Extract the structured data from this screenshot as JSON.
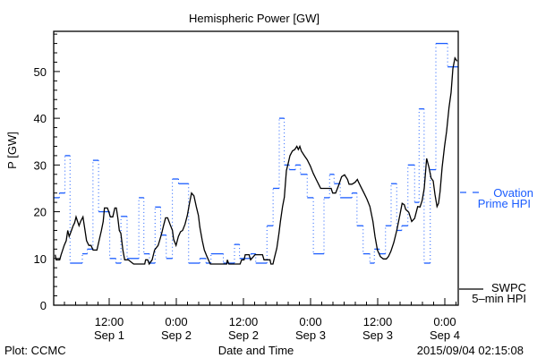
{
  "chart_data": {
    "type": "line",
    "title": "Hemispheric Power [GW]",
    "xlabel": "Date and Time",
    "ylabel": "P [GW]",
    "x_units": "hours since 2015-09-01 00:00 UT",
    "xlim": [
      2.08,
      74.4
    ],
    "ylim": [
      0,
      58.6
    ],
    "y_ticks": [
      0,
      10,
      20,
      30,
      40,
      50
    ],
    "y_tick_labels": [
      "0",
      "10",
      "20",
      "30",
      "40",
      "50"
    ],
    "x_ticks": [
      12,
      24,
      36,
      48,
      60,
      72
    ],
    "x_tick_labels": [
      {
        "time": "12:00",
        "date": "Sep 1"
      },
      {
        "time": "0:00",
        "date": "Sep 2"
      },
      {
        "time": "12:00",
        "date": "Sep 2"
      },
      {
        "time": "0:00",
        "date": "Sep 3"
      },
      {
        "time": "12:00",
        "date": "Sep 3"
      },
      {
        "time": "0:00",
        "date": "Sep 4"
      }
    ],
    "grid": false,
    "legend_placement": "right-outside",
    "series": [
      {
        "name": "Ovation Prime HPI",
        "legend_line1": "Ovation",
        "legend_line2": "Prime HPI",
        "color": "#1a5cff",
        "style": "step",
        "end_x": 74.4,
        "steps": [
          [
            2.1,
            23
          ],
          [
            3.1,
            24
          ],
          [
            4.1,
            32
          ],
          [
            5,
            9
          ],
          [
            7.2,
            11
          ],
          [
            8.1,
            12
          ],
          [
            9.1,
            31
          ],
          [
            10.1,
            20
          ],
          [
            12.1,
            10
          ],
          [
            13.2,
            9
          ],
          [
            14.1,
            19
          ],
          [
            15.2,
            10
          ],
          [
            17.3,
            23
          ],
          [
            18.2,
            11
          ],
          [
            19.2,
            9
          ],
          [
            20.2,
            21
          ],
          [
            21.2,
            15
          ],
          [
            22.2,
            10
          ],
          [
            23.3,
            27
          ],
          [
            24.4,
            26
          ],
          [
            26.2,
            9
          ],
          [
            28.2,
            10
          ],
          [
            29.3,
            9
          ],
          [
            30.2,
            11
          ],
          [
            32.4,
            9
          ],
          [
            34.4,
            13
          ],
          [
            35.3,
            10
          ],
          [
            37.3,
            11
          ],
          [
            38.2,
            9
          ],
          [
            40.2,
            17
          ],
          [
            41.3,
            25
          ],
          [
            42.4,
            40
          ],
          [
            43.3,
            30
          ],
          [
            44.2,
            29
          ],
          [
            45.3,
            30
          ],
          [
            46.2,
            28
          ],
          [
            47.4,
            23
          ],
          [
            48.5,
            11
          ],
          [
            50.4,
            23
          ],
          [
            51.4,
            28
          ],
          [
            52.2,
            26
          ],
          [
            53.3,
            23
          ],
          [
            55.4,
            24
          ],
          [
            56.3,
            17
          ],
          [
            57.4,
            11
          ],
          [
            58.6,
            9
          ],
          [
            59.4,
            12
          ],
          [
            60.3,
            11
          ],
          [
            61.4,
            17
          ],
          [
            62.4,
            26
          ],
          [
            63.4,
            16
          ],
          [
            64.3,
            17
          ],
          [
            65.4,
            30
          ],
          [
            66.6,
            22
          ],
          [
            67.4,
            42
          ],
          [
            68.3,
            9
          ],
          [
            69.4,
            29
          ],
          [
            70.4,
            56
          ],
          [
            72.5,
            51
          ]
        ]
      },
      {
        "name": "SWPC 5-min HPI",
        "legend_line1": "SWPC",
        "legend_line2": "5–min HPI",
        "color": "#000000",
        "style": "line",
        "points": [
          [
            2.35,
            10.8
          ],
          [
            2.51,
            9.7
          ],
          [
            3.15,
            9.7
          ],
          [
            3.41,
            10.8
          ],
          [
            3.68,
            11.8
          ],
          [
            3.95,
            12.8
          ],
          [
            4.32,
            13.8
          ],
          [
            4.59,
            16.0
          ],
          [
            4.85,
            14.7
          ],
          [
            5.17,
            15.7
          ],
          [
            5.55,
            17.0
          ],
          [
            5.81,
            17.6
          ],
          [
            6.08,
            18.9
          ],
          [
            6.35,
            17.9
          ],
          [
            6.61,
            17.0
          ],
          [
            6.88,
            17.9
          ],
          [
            7.31,
            18.9
          ],
          [
            7.68,
            16.0
          ],
          [
            7.95,
            13.8
          ],
          [
            8.37,
            12.8
          ],
          [
            8.75,
            12.8
          ],
          [
            9.12,
            11.8
          ],
          [
            9.81,
            11.8
          ],
          [
            10.19,
            13.8
          ],
          [
            10.61,
            16.0
          ],
          [
            10.93,
            17.9
          ],
          [
            11.15,
            20.8
          ],
          [
            11.68,
            20.8
          ],
          [
            11.95,
            19.9
          ],
          [
            12.21,
            18.9
          ],
          [
            12.64,
            18.9
          ],
          [
            13.01,
            20.8
          ],
          [
            13.28,
            20.8
          ],
          [
            13.55,
            18.6
          ],
          [
            13.81,
            16.0
          ],
          [
            14.08,
            15.4
          ],
          [
            14.45,
            11.8
          ],
          [
            14.77,
            9.7
          ],
          [
            15.41,
            9.7
          ],
          [
            16.37,
            8.8
          ],
          [
            18.35,
            8.8
          ],
          [
            18.51,
            9.7
          ],
          [
            18.88,
            9.7
          ],
          [
            19.15,
            8.8
          ],
          [
            19.68,
            9.7
          ],
          [
            20.11,
            11.8
          ],
          [
            20.75,
            12.8
          ],
          [
            21.01,
            13.8
          ],
          [
            21.39,
            15.4
          ],
          [
            21.71,
            17.0
          ],
          [
            22.08,
            18.7
          ],
          [
            22.45,
            18.7
          ],
          [
            22.88,
            17.3
          ],
          [
            23.31,
            16.0
          ],
          [
            23.52,
            14.1
          ],
          [
            23.95,
            12.8
          ],
          [
            24.37,
            14.7
          ],
          [
            24.75,
            15.7
          ],
          [
            25.12,
            16.0
          ],
          [
            25.55,
            17.3
          ],
          [
            25.97,
            19.2
          ],
          [
            26.35,
            21.8
          ],
          [
            26.72,
            24.0
          ],
          [
            27.15,
            23.4
          ],
          [
            27.57,
            21.1
          ],
          [
            27.95,
            19.2
          ],
          [
            28.21,
            16.7
          ],
          [
            28.64,
            13.8
          ],
          [
            29.01,
            11.8
          ],
          [
            29.55,
            10.2
          ],
          [
            30.08,
            8.8
          ],
          [
            33.01,
            8.8
          ],
          [
            33.12,
            9.7
          ],
          [
            33.39,
            8.8
          ],
          [
            35.41,
            8.8
          ],
          [
            35.68,
            9.7
          ],
          [
            36.11,
            9.7
          ],
          [
            36.32,
            10.8
          ],
          [
            37.01,
            10.8
          ],
          [
            37.28,
            9.7
          ],
          [
            38.08,
            10.8
          ],
          [
            39.41,
            10.8
          ],
          [
            39.68,
            9.7
          ],
          [
            40.75,
            9.7
          ],
          [
            40.91,
            8.8
          ],
          [
            41.28,
            8.8
          ],
          [
            41.55,
            10.2
          ],
          [
            41.97,
            12.2
          ],
          [
            42.35,
            15.4
          ],
          [
            42.61,
            17.9
          ],
          [
            42.99,
            21.1
          ],
          [
            43.31,
            23.1
          ],
          [
            43.68,
            28.8
          ],
          [
            43.95,
            30.1
          ],
          [
            44.32,
            32.0
          ],
          [
            44.75,
            33.0
          ],
          [
            45.17,
            33.3
          ],
          [
            45.55,
            34.0
          ],
          [
            45.81,
            33.3
          ],
          [
            46.08,
            34.0
          ],
          [
            46.35,
            33.0
          ],
          [
            46.88,
            32.0
          ],
          [
            47.41,
            31.1
          ],
          [
            47.95,
            29.8
          ],
          [
            48.48,
            28.2
          ],
          [
            49.01,
            26.9
          ],
          [
            49.55,
            25.6
          ],
          [
            49.81,
            25.0
          ],
          [
            51.68,
            25.0
          ],
          [
            51.95,
            24.0
          ],
          [
            52.48,
            24.0
          ],
          [
            53.01,
            25.6
          ],
          [
            53.55,
            27.5
          ],
          [
            54.08,
            27.9
          ],
          [
            54.61,
            26.9
          ],
          [
            54.88,
            25.9
          ],
          [
            55.41,
            25.9
          ],
          [
            55.95,
            26.3
          ],
          [
            56.37,
            26.9
          ],
          [
            56.59,
            26.3
          ],
          [
            57.01,
            25.3
          ],
          [
            57.55,
            24.0
          ],
          [
            58.08,
            22.7
          ],
          [
            58.61,
            21.1
          ],
          [
            59.15,
            17.9
          ],
          [
            59.52,
            14.7
          ],
          [
            59.95,
            11.8
          ],
          [
            60.48,
            10.4
          ],
          [
            61.01,
            9.9
          ],
          [
            61.55,
            9.9
          ],
          [
            61.92,
            10.4
          ],
          [
            62.35,
            11.5
          ],
          [
            62.88,
            13.4
          ],
          [
            63.41,
            16.0
          ],
          [
            63.95,
            19.2
          ],
          [
            64.37,
            21.8
          ],
          [
            64.75,
            21.5
          ],
          [
            65.01,
            20.5
          ],
          [
            65.55,
            19.9
          ],
          [
            66.08,
            17.9
          ],
          [
            66.61,
            18.6
          ],
          [
            67.15,
            21.1
          ],
          [
            67.57,
            21.0
          ],
          [
            67.95,
            22.4
          ],
          [
            68.32,
            25.0
          ],
          [
            68.75,
            31.4
          ],
          [
            69.17,
            29.5
          ],
          [
            69.55,
            27.2
          ],
          [
            69.92,
            26.6
          ],
          [
            70.24,
            23.7
          ],
          [
            70.61,
            21.1
          ],
          [
            70.88,
            21.8
          ],
          [
            71.15,
            24.3
          ],
          [
            71.52,
            29.5
          ],
          [
            71.95,
            34.0
          ],
          [
            72.32,
            37.2
          ],
          [
            72.75,
            42.3
          ],
          [
            73.12,
            45.5
          ],
          [
            73.44,
            50.6
          ],
          [
            73.81,
            52.9
          ],
          [
            74.19,
            52.2
          ]
        ]
      }
    ]
  },
  "footer": {
    "plot_credit": "Plot: CCMC",
    "timestamp": "2015/09/04 02:15:08"
  }
}
